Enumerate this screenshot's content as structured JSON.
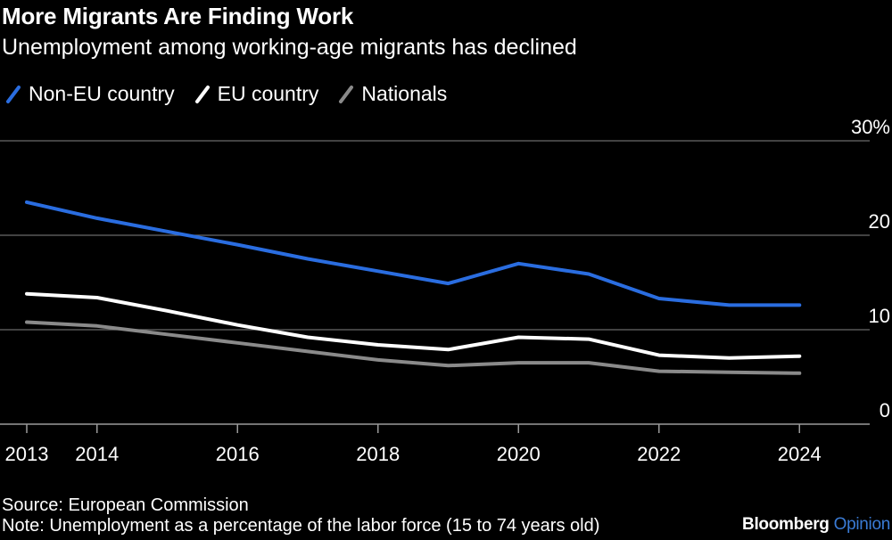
{
  "header": {
    "title": "More Migrants Are Finding Work",
    "subtitle": "Unemployment among working-age migrants has declined"
  },
  "footer": {
    "source": "Source: European Commission",
    "note": "Note: Unemployment as a percentage of the labor force (15 to 74 years old)",
    "brand_main": "Bloomberg",
    "brand_sub": "Opinion"
  },
  "colors": {
    "background": "#000000",
    "non_eu": "#2a6de0",
    "eu": "#ffffff",
    "nationals": "#8a8a8a",
    "grid": "#6a6a6a"
  },
  "chart_data": {
    "type": "line",
    "x": [
      2013,
      2014,
      2015,
      2016,
      2017,
      2018,
      2019,
      2020,
      2021,
      2022,
      2023,
      2024
    ],
    "x_tick_labels": [
      "2013",
      "2014",
      "2016",
      "2018",
      "2020",
      "2022",
      "2024"
    ],
    "x_ticks": [
      2013,
      2014,
      2016,
      2018,
      2020,
      2022,
      2024
    ],
    "xlim": [
      2013,
      2025
    ],
    "y_tick_labels": [
      "30%",
      "20",
      "10",
      "0"
    ],
    "y_ticks": [
      30,
      20,
      10,
      0
    ],
    "ylim": [
      0,
      30
    ],
    "grid": true,
    "legend_position": "top-left",
    "series": [
      {
        "name": "Non-EU country",
        "color_key": "non_eu",
        "values": [
          23.5,
          21.8,
          20.4,
          19.0,
          17.5,
          16.2,
          14.9,
          17.0,
          15.9,
          13.3,
          12.6,
          12.6
        ]
      },
      {
        "name": "EU country",
        "color_key": "eu",
        "values": [
          13.8,
          13.4,
          12.0,
          10.5,
          9.2,
          8.4,
          7.9,
          9.2,
          9.0,
          7.3,
          7.0,
          7.2
        ]
      },
      {
        "name": "Nationals",
        "color_key": "nationals",
        "values": [
          10.8,
          10.4,
          9.5,
          8.6,
          7.7,
          6.8,
          6.2,
          6.5,
          6.5,
          5.6,
          5.5,
          5.4
        ]
      }
    ]
  }
}
